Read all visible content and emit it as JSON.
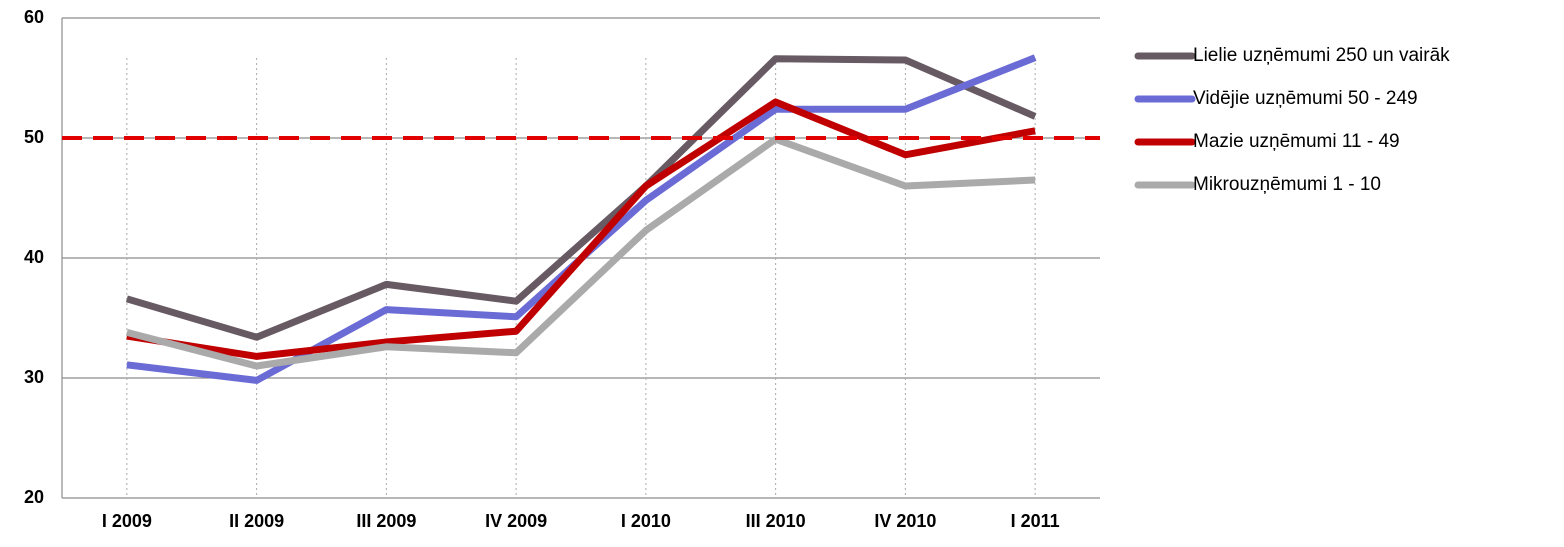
{
  "chart_data": {
    "type": "line",
    "categories": [
      "I 2009",
      "II 2009",
      "III 2009",
      "IV 2009",
      "I 2010",
      "III 2010",
      "IV 2010",
      "I 2011"
    ],
    "series": [
      {
        "name": "Lielie uzņēmumi 250 un vairāk",
        "color": "#675a63",
        "values": [
          36.6,
          33.4,
          37.8,
          36.4,
          46.0,
          56.6,
          56.5,
          51.8
        ]
      },
      {
        "name": "Vidējie uzņēmumi 50 - 249",
        "color": "#6b6bd6",
        "values": [
          31.1,
          29.8,
          35.7,
          35.1,
          44.8,
          52.4,
          52.4,
          56.7
        ]
      },
      {
        "name": "Mazie uzņēmumi 11 - 49",
        "color": "#c00000",
        "values": [
          33.5,
          31.8,
          33.0,
          33.9,
          46.0,
          53.0,
          48.6,
          50.6
        ]
      },
      {
        "name": "Mikrouzņēmumi 1 - 10",
        "color": "#aaaaaa",
        "values": [
          33.8,
          31.0,
          32.6,
          32.1,
          42.3,
          49.9,
          46.0,
          46.5
        ]
      }
    ],
    "ylim": [
      20,
      60
    ],
    "yticks": [
      20,
      30,
      40,
      50,
      60
    ],
    "grid": true,
    "reference_line": {
      "value": 50,
      "color": "#e00000"
    },
    "legend": "right"
  }
}
